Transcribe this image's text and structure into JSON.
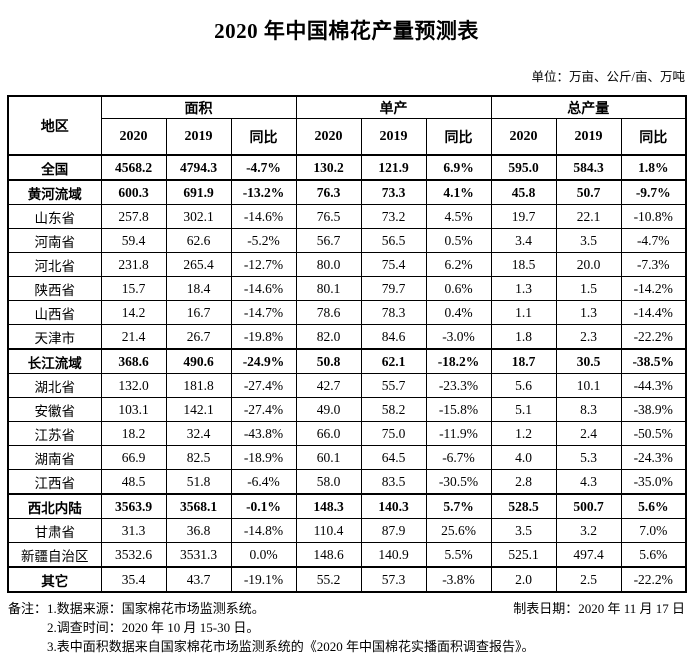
{
  "title": "2020 年中国棉花产量预测表",
  "unit_note": "单位：万亩、公斤/亩、万吨",
  "table": {
    "header": {
      "region": "地区",
      "groups": [
        "面积",
        "单产",
        "总产量"
      ],
      "sub": [
        "2020",
        "2019",
        "同比"
      ]
    },
    "rows": [
      {
        "region": "全国",
        "style": "section",
        "values": [
          "4568.2",
          "4794.3",
          "-4.7%",
          "130.2",
          "121.9",
          "6.9%",
          "595.0",
          "584.3",
          "1.8%"
        ]
      },
      {
        "region": "黄河流域",
        "style": "section",
        "values": [
          "600.3",
          "691.9",
          "-13.2%",
          "76.3",
          "73.3",
          "4.1%",
          "45.8",
          "50.7",
          "-9.7%"
        ]
      },
      {
        "region": "山东省",
        "style": "normal",
        "values": [
          "257.8",
          "302.1",
          "-14.6%",
          "76.5",
          "73.2",
          "4.5%",
          "19.7",
          "22.1",
          "-10.8%"
        ]
      },
      {
        "region": "河南省",
        "style": "normal",
        "values": [
          "59.4",
          "62.6",
          "-5.2%",
          "56.7",
          "56.5",
          "0.5%",
          "3.4",
          "3.5",
          "-4.7%"
        ]
      },
      {
        "region": "河北省",
        "style": "normal",
        "values": [
          "231.8",
          "265.4",
          "-12.7%",
          "80.0",
          "75.4",
          "6.2%",
          "18.5",
          "20.0",
          "-7.3%"
        ]
      },
      {
        "region": "陕西省",
        "style": "normal",
        "values": [
          "15.7",
          "18.4",
          "-14.6%",
          "80.1",
          "79.7",
          "0.6%",
          "1.3",
          "1.5",
          "-14.2%"
        ]
      },
      {
        "region": "山西省",
        "style": "normal",
        "values": [
          "14.2",
          "16.7",
          "-14.7%",
          "78.6",
          "78.3",
          "0.4%",
          "1.1",
          "1.3",
          "-14.4%"
        ]
      },
      {
        "region": "天津市",
        "style": "normal",
        "values": [
          "21.4",
          "26.7",
          "-19.8%",
          "82.0",
          "84.6",
          "-3.0%",
          "1.8",
          "2.3",
          "-22.2%"
        ]
      },
      {
        "region": "长江流域",
        "style": "section",
        "values": [
          "368.6",
          "490.6",
          "-24.9%",
          "50.8",
          "62.1",
          "-18.2%",
          "18.7",
          "30.5",
          "-38.5%"
        ]
      },
      {
        "region": "湖北省",
        "style": "normal",
        "values": [
          "132.0",
          "181.8",
          "-27.4%",
          "42.7",
          "55.7",
          "-23.3%",
          "5.6",
          "10.1",
          "-44.3%"
        ]
      },
      {
        "region": "安徽省",
        "style": "normal",
        "values": [
          "103.1",
          "142.1",
          "-27.4%",
          "49.0",
          "58.2",
          "-15.8%",
          "5.1",
          "8.3",
          "-38.9%"
        ]
      },
      {
        "region": "江苏省",
        "style": "normal",
        "values": [
          "18.2",
          "32.4",
          "-43.8%",
          "66.0",
          "75.0",
          "-11.9%",
          "1.2",
          "2.4",
          "-50.5%"
        ]
      },
      {
        "region": "湖南省",
        "style": "normal",
        "values": [
          "66.9",
          "82.5",
          "-18.9%",
          "60.1",
          "64.5",
          "-6.7%",
          "4.0",
          "5.3",
          "-24.3%"
        ]
      },
      {
        "region": "江西省",
        "style": "normal",
        "values": [
          "48.5",
          "51.8",
          "-6.4%",
          "58.0",
          "83.5",
          "-30.5%",
          "2.8",
          "4.3",
          "-35.0%"
        ]
      },
      {
        "region": "西北内陆",
        "style": "section",
        "values": [
          "3563.9",
          "3568.1",
          "-0.1%",
          "148.3",
          "140.3",
          "5.7%",
          "528.5",
          "500.7",
          "5.6%"
        ]
      },
      {
        "region": "甘肃省",
        "style": "normal",
        "values": [
          "31.3",
          "36.8",
          "-14.8%",
          "110.4",
          "87.9",
          "25.6%",
          "3.5",
          "3.2",
          "7.0%"
        ]
      },
      {
        "region": "新疆自治区",
        "style": "normal",
        "values": [
          "3532.6",
          "3531.3",
          "0.0%",
          "148.6",
          "140.9",
          "5.5%",
          "525.1",
          "497.4",
          "5.6%"
        ]
      },
      {
        "region": "其它",
        "style": "label-bold",
        "values": [
          "35.4",
          "43.7",
          "-19.1%",
          "55.2",
          "57.3",
          "-3.8%",
          "2.0",
          "2.5",
          "-22.2%"
        ]
      }
    ]
  },
  "footer": {
    "notes_label": "备注：",
    "notes": [
      "1.数据来源：国家棉花市场监测系统。",
      "2.调查时间：2020 年 10 月 15-30 日。",
      "3.表中面积数据来自国家棉花市场监测系统的《2020 年中国棉花实播面积调查报告》。"
    ],
    "date_label": "制表日期：2020 年 11 月 17 日"
  }
}
